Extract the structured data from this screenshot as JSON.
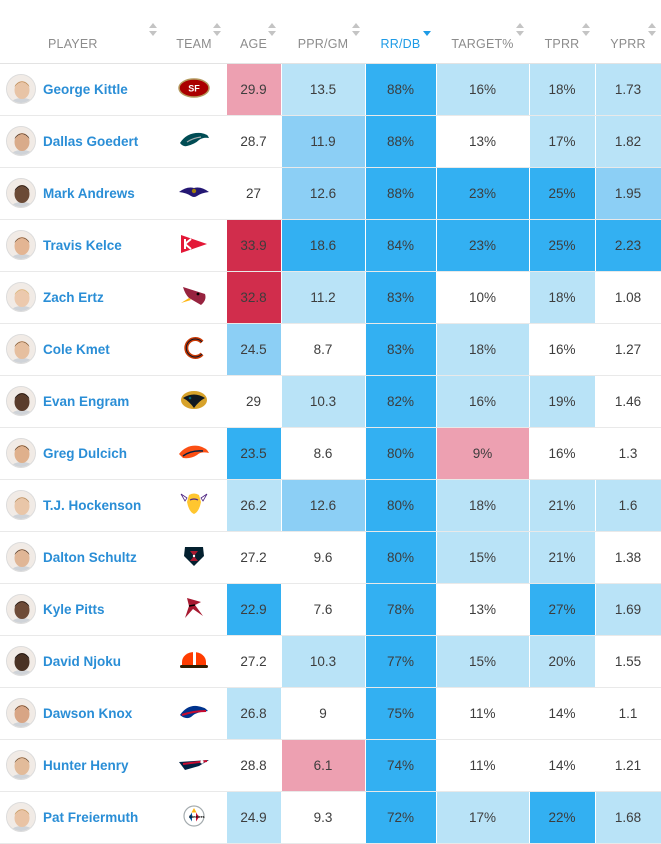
{
  "table": {
    "columns": [
      {
        "key": "player",
        "label": "PLAYER"
      },
      {
        "key": "team",
        "label": "TEAM"
      },
      {
        "key": "age",
        "label": "AGE"
      },
      {
        "key": "ppr_gm",
        "label": "PPR/GM"
      },
      {
        "key": "rr_db",
        "label": "RR/DB",
        "active_sort": "descending"
      },
      {
        "key": "target_pct",
        "label": "TARGET%"
      },
      {
        "key": "tprr",
        "label": "TPRR"
      },
      {
        "key": "yprr",
        "label": "YPRR"
      }
    ],
    "cell_colors": {
      "white": "#ffffff",
      "light_blue": "#b9e3f7",
      "medium_blue": "#8ccff5",
      "dark_blue": "#33b0f2",
      "pink": "#eda0b1",
      "red": "#d12d4c"
    },
    "rows": [
      {
        "player": "George Kittle",
        "team_logo": "49ers-logo",
        "age": "29.9",
        "ppr_gm": "13.5",
        "rr_db": "88%",
        "target_pct": "16%",
        "tprr": "18%",
        "yprr": "1.73",
        "shade": {
          "age": "pink",
          "ppr_gm": "light_blue",
          "rr_db": "dark_blue",
          "target_pct": "light_blue",
          "tprr": "light_blue",
          "yprr": "light_blue"
        }
      },
      {
        "player": "Dallas Goedert",
        "team_logo": "eagles-logo",
        "age": "28.7",
        "ppr_gm": "11.9",
        "rr_db": "88%",
        "target_pct": "13%",
        "tprr": "17%",
        "yprr": "1.82",
        "shade": {
          "age": "white",
          "ppr_gm": "medium_blue",
          "rr_db": "dark_blue",
          "target_pct": "white",
          "tprr": "light_blue",
          "yprr": "light_blue"
        }
      },
      {
        "player": "Mark Andrews",
        "team_logo": "ravens-logo",
        "age": "27",
        "ppr_gm": "12.6",
        "rr_db": "88%",
        "target_pct": "23%",
        "tprr": "25%",
        "yprr": "1.95",
        "shade": {
          "age": "white",
          "ppr_gm": "medium_blue",
          "rr_db": "dark_blue",
          "target_pct": "dark_blue",
          "tprr": "dark_blue",
          "yprr": "medium_blue"
        }
      },
      {
        "player": "Travis Kelce",
        "team_logo": "chiefs-logo",
        "age": "33.9",
        "ppr_gm": "18.6",
        "rr_db": "84%",
        "target_pct": "23%",
        "tprr": "25%",
        "yprr": "2.23",
        "shade": {
          "age": "red",
          "ppr_gm": "dark_blue",
          "rr_db": "dark_blue",
          "target_pct": "dark_blue",
          "tprr": "dark_blue",
          "yprr": "dark_blue"
        }
      },
      {
        "player": "Zach Ertz",
        "team_logo": "cardinals-logo",
        "age": "32.8",
        "ppr_gm": "11.2",
        "rr_db": "83%",
        "target_pct": "10%",
        "tprr": "18%",
        "yprr": "1.08",
        "shade": {
          "age": "red",
          "ppr_gm": "light_blue",
          "rr_db": "dark_blue",
          "target_pct": "white",
          "tprr": "light_blue",
          "yprr": "white"
        }
      },
      {
        "player": "Cole Kmet",
        "team_logo": "bears-logo",
        "age": "24.5",
        "ppr_gm": "8.7",
        "rr_db": "83%",
        "target_pct": "18%",
        "tprr": "16%",
        "yprr": "1.27",
        "shade": {
          "age": "medium_blue",
          "ppr_gm": "white",
          "rr_db": "dark_blue",
          "target_pct": "light_blue",
          "tprr": "white",
          "yprr": "white"
        }
      },
      {
        "player": "Evan Engram",
        "team_logo": "jaguars-logo",
        "age": "29",
        "ppr_gm": "10.3",
        "rr_db": "82%",
        "target_pct": "16%",
        "tprr": "19%",
        "yprr": "1.46",
        "shade": {
          "age": "white",
          "ppr_gm": "light_blue",
          "rr_db": "dark_blue",
          "target_pct": "light_blue",
          "tprr": "light_blue",
          "yprr": "white"
        }
      },
      {
        "player": "Greg Dulcich",
        "team_logo": "broncos-logo",
        "age": "23.5",
        "ppr_gm": "8.6",
        "rr_db": "80%",
        "target_pct": "9%",
        "tprr": "16%",
        "yprr": "1.3",
        "shade": {
          "age": "dark_blue",
          "ppr_gm": "white",
          "rr_db": "dark_blue",
          "target_pct": "pink",
          "tprr": "white",
          "yprr": "white"
        }
      },
      {
        "player": "T.J. Hockenson",
        "team_logo": "vikings-logo",
        "age": "26.2",
        "ppr_gm": "12.6",
        "rr_db": "80%",
        "target_pct": "18%",
        "tprr": "21%",
        "yprr": "1.6",
        "shade": {
          "age": "light_blue",
          "ppr_gm": "medium_blue",
          "rr_db": "dark_blue",
          "target_pct": "light_blue",
          "tprr": "light_blue",
          "yprr": "light_blue"
        }
      },
      {
        "player": "Dalton Schultz",
        "team_logo": "texans-logo",
        "age": "27.2",
        "ppr_gm": "9.6",
        "rr_db": "80%",
        "target_pct": "15%",
        "tprr": "21%",
        "yprr": "1.38",
        "shade": {
          "age": "white",
          "ppr_gm": "white",
          "rr_db": "dark_blue",
          "target_pct": "light_blue",
          "tprr": "light_blue",
          "yprr": "white"
        }
      },
      {
        "player": "Kyle Pitts",
        "team_logo": "falcons-logo",
        "age": "22.9",
        "ppr_gm": "7.6",
        "rr_db": "78%",
        "target_pct": "13%",
        "tprr": "27%",
        "yprr": "1.69",
        "shade": {
          "age": "dark_blue",
          "ppr_gm": "white",
          "rr_db": "dark_blue",
          "target_pct": "white",
          "tprr": "dark_blue",
          "yprr": "light_blue"
        }
      },
      {
        "player": "David Njoku",
        "team_logo": "browns-logo",
        "age": "27.2",
        "ppr_gm": "10.3",
        "rr_db": "77%",
        "target_pct": "15%",
        "tprr": "20%",
        "yprr": "1.55",
        "shade": {
          "age": "white",
          "ppr_gm": "light_blue",
          "rr_db": "dark_blue",
          "target_pct": "light_blue",
          "tprr": "light_blue",
          "yprr": "white"
        }
      },
      {
        "player": "Dawson Knox",
        "team_logo": "bills-logo",
        "age": "26.8",
        "ppr_gm": "9",
        "rr_db": "75%",
        "target_pct": "11%",
        "tprr": "14%",
        "yprr": "1.1",
        "shade": {
          "age": "light_blue",
          "ppr_gm": "white",
          "rr_db": "dark_blue",
          "target_pct": "white",
          "tprr": "white",
          "yprr": "white"
        }
      },
      {
        "player": "Hunter Henry",
        "team_logo": "patriots-logo",
        "age": "28.8",
        "ppr_gm": "6.1",
        "rr_db": "74%",
        "target_pct": "11%",
        "tprr": "14%",
        "yprr": "1.21",
        "shade": {
          "age": "white",
          "ppr_gm": "pink",
          "rr_db": "dark_blue",
          "target_pct": "white",
          "tprr": "white",
          "yprr": "white"
        }
      },
      {
        "player": "Pat Freiermuth",
        "team_logo": "steelers-logo",
        "age": "24.9",
        "ppr_gm": "9.3",
        "rr_db": "72%",
        "target_pct": "17%",
        "tprr": "22%",
        "yprr": "1.68",
        "shade": {
          "age": "light_blue",
          "ppr_gm": "white",
          "rr_db": "dark_blue",
          "target_pct": "light_blue",
          "tprr": "dark_blue",
          "yprr": "light_blue"
        }
      }
    ]
  }
}
